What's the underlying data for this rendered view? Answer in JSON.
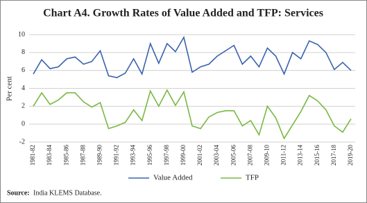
{
  "chart_data": {
    "type": "line",
    "title": "Chart A4. Growth Rates of Value Added and TFP: Services",
    "y_label": "Per cent",
    "categories": [
      "1981-82",
      null,
      "1983-84",
      null,
      "1985-86",
      null,
      "1987-88",
      null,
      "1989-90",
      null,
      "1991-92",
      null,
      "1993-94",
      null,
      "1995-96",
      null,
      "1997-98",
      null,
      "1999-00",
      null,
      "2001-02",
      null,
      "2003-04",
      null,
      "2005-06",
      null,
      "2007-08",
      null,
      "2009-10",
      null,
      "2011-12",
      null,
      "2013-14",
      null,
      "2015-16",
      null,
      "2017-18",
      null,
      "2019-20"
    ],
    "series": [
      {
        "name": "Value Added",
        "color": "#3a62ad",
        "values": [
          5.6,
          7.2,
          6.2,
          6.4,
          7.3,
          7.5,
          6.7,
          7.0,
          8.2,
          5.4,
          5.2,
          5.7,
          7.3,
          5.6,
          9.0,
          6.8,
          9.0,
          8.1,
          9.7,
          5.8,
          6.4,
          6.7,
          7.6,
          8.2,
          8.8,
          6.7,
          7.6,
          6.4,
          8.5,
          7.6,
          5.6,
          8.0,
          7.3,
          9.3,
          8.9,
          8.0,
          6.1,
          6.9,
          6.0
        ]
      },
      {
        "name": "TFP",
        "color": "#79b842",
        "values": [
          2.0,
          3.5,
          2.2,
          2.7,
          3.5,
          3.5,
          2.5,
          1.9,
          2.4,
          -0.5,
          -0.2,
          0.2,
          1.6,
          0.4,
          3.7,
          2.0,
          3.8,
          2.1,
          3.6,
          -0.2,
          -0.5,
          0.8,
          1.3,
          1.5,
          1.5,
          -0.2,
          0.4,
          -1.2,
          2.0,
          0.7,
          -1.6,
          -0.1,
          1.4,
          3.2,
          2.6,
          1.6,
          -0.2,
          -0.9,
          0.6
        ]
      }
    ],
    "ylim": [
      -2,
      10
    ],
    "yticks": [
      -2,
      0,
      2,
      4,
      6,
      8,
      10
    ],
    "grid": true,
    "legend": "bottom",
    "source": {
      "label": "Source:",
      "text": "India KLEMS Database."
    }
  }
}
